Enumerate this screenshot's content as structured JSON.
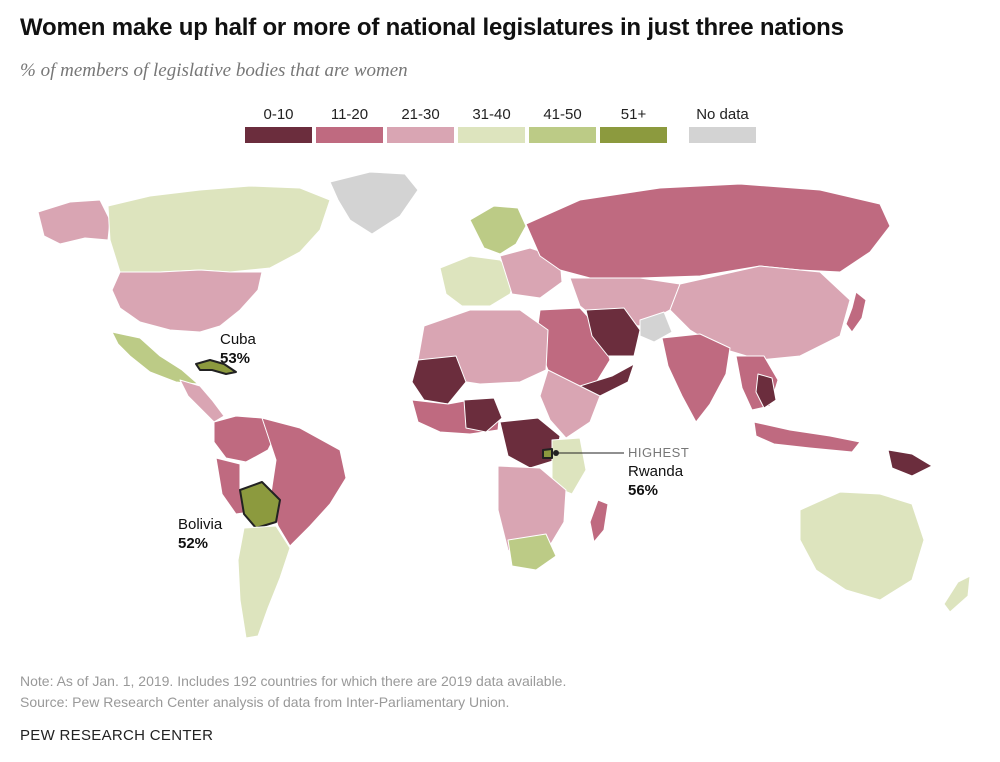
{
  "header": {
    "title": "Women make up half or more of national legislatures in just three nations",
    "subtitle": "% of members of legislative bodies that are women"
  },
  "legend": {
    "items": [
      {
        "label": "0-10",
        "color": "#6b2d3d"
      },
      {
        "label": "11-20",
        "color": "#bf6a80"
      },
      {
        "label": "21-30",
        "color": "#d9a5b3"
      },
      {
        "label": "31-40",
        "color": "#dde4be"
      },
      {
        "label": "41-50",
        "color": "#bccb86"
      },
      {
        "label": "51+",
        "color": "#8c9a3e"
      },
      {
        "label": "No data",
        "color": "#d3d3d3"
      }
    ]
  },
  "callouts": {
    "cuba": {
      "name": "Cuba",
      "value": "53%"
    },
    "rwanda": {
      "prefix": "HIGHEST",
      "name": "Rwanda",
      "value": "56%"
    },
    "bolivia": {
      "name": "Bolivia",
      "value": "52%"
    }
  },
  "footer": {
    "note": "Note: As of Jan. 1, 2019. Includes 192 countries for which there are 2019 data available.",
    "source": "Source: Pew Research Center analysis of data from Inter-Parliamentary Union.",
    "brand": "PEW RESEARCH CENTER"
  }
}
